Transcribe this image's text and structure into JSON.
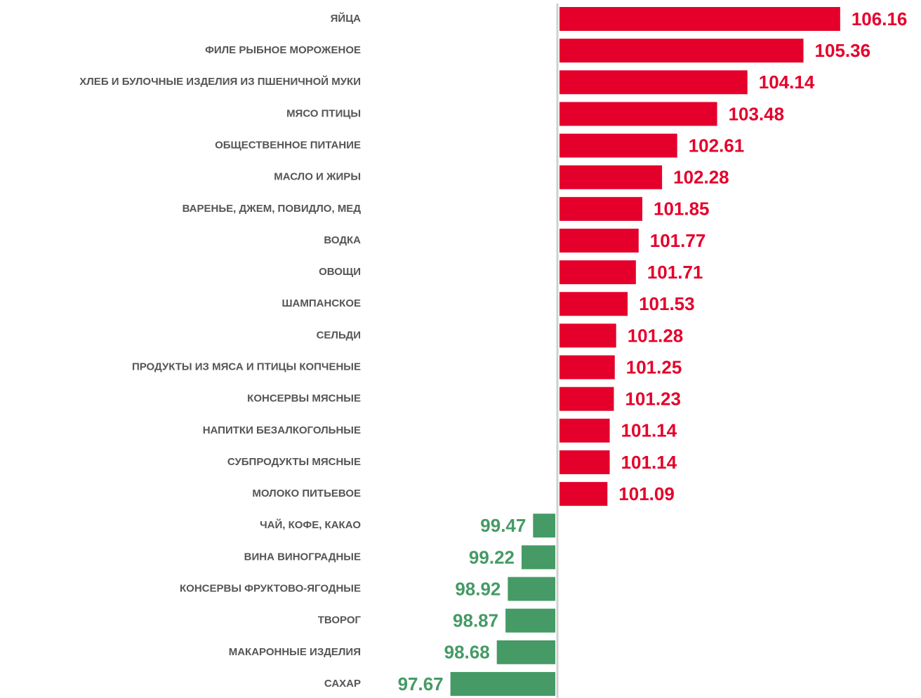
{
  "chart_data": {
    "type": "bar",
    "categories": [
      "ЯЙЦА",
      "ФИЛЕ РЫБНОЕ МОРОЖЕНОЕ",
      "ХЛЕБ И БУЛОЧНЫЕ ИЗДЕЛИЯ ИЗ ПШЕНИЧНОЙ МУКИ",
      "МЯСО ПТИЦЫ",
      "ОБЩЕСТВЕННОЕ ПИТАНИЕ",
      "МАСЛО И ЖИРЫ",
      "ВАРЕНЬЕ, ДЖЕМ, ПОВИДЛО, МЕД",
      "ВОДКА",
      "ОВОЩИ",
      "ШАМПАНСКОЕ",
      "СЕЛЬДИ",
      "ПРОДУКТЫ ИЗ МЯСА И ПТИЦЫ КОПЧЕНЫЕ",
      "КОНСЕРВЫ МЯСНЫЕ",
      "НАПИТКИ БЕЗАЛКОГОЛЬНЫЕ",
      "СУБПРОДУКТЫ МЯСНЫЕ",
      "МОЛОКО ПИТЬЕВОЕ",
      "ЧАЙ, КОФЕ, КАКАО",
      "ВИНА ВИНОГРАДНЫЕ",
      "КОНСЕРВЫ ФРУКТОВО-ЯГОДНЫЕ",
      "ТВОРОГ",
      "МАКАРОННЫЕ ИЗДЕЛИЯ",
      "САХАР"
    ],
    "values": [
      106.16,
      105.36,
      104.14,
      103.48,
      102.61,
      102.28,
      101.85,
      101.77,
      101.71,
      101.53,
      101.28,
      101.25,
      101.23,
      101.14,
      101.14,
      101.09,
      99.47,
      99.22,
      98.92,
      98.87,
      98.68,
      97.67
    ],
    "baseline": 100,
    "xlim": [
      96.4,
      106.8
    ],
    "color_above": "#e4002b",
    "color_below": "#459a65"
  }
}
